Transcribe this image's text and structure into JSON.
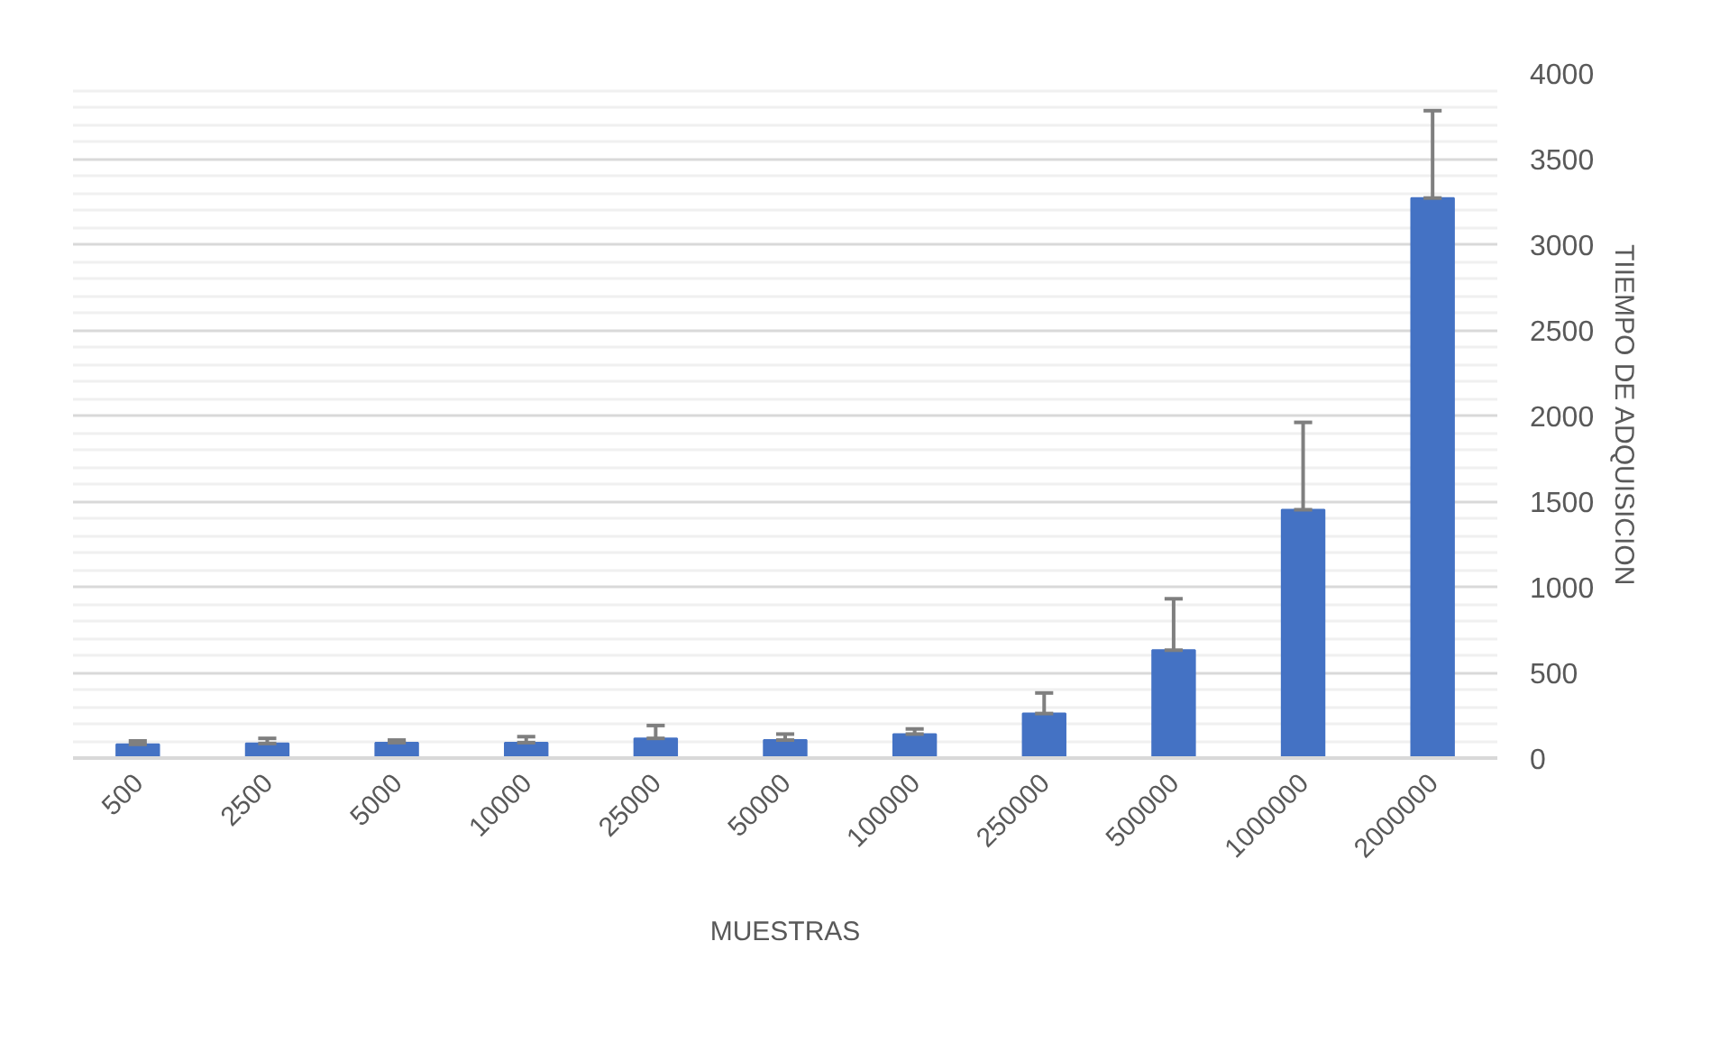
{
  "chart_data": {
    "type": "bar",
    "xlabel": "MUESTRAS",
    "ylabel": "TIIEMPO DE ADQUISICION",
    "categories": [
      "500",
      "2500",
      "5000",
      "10000",
      "25000",
      "50000",
      "100000",
      "250000",
      "500000",
      "1000000",
      "2000000"
    ],
    "values": [
      80,
      85,
      90,
      90,
      115,
      105,
      140,
      260,
      630,
      1450,
      3270
    ],
    "errors": [
      [
        80,
        100
      ],
      [
        85,
        115
      ],
      [
        90,
        105
      ],
      [
        90,
        125
      ],
      [
        115,
        190
      ],
      [
        105,
        140
      ],
      [
        140,
        170
      ],
      [
        260,
        380
      ],
      [
        630,
        930
      ],
      [
        1450,
        1960
      ],
      [
        3270,
        3780
      ]
    ],
    "color": "#4472c4",
    "ylim": [
      0,
      4000
    ],
    "yticks": [
      0,
      {
        "value": 100,
        "label": null
      },
      {
        "value": 200,
        "label": null
      },
      {
        "value": 300,
        "label": null
      },
      {
        "value": 400,
        "label": null
      },
      500,
      {
        "value": 600,
        "label": null
      },
      {
        "value": 700,
        "label": null
      },
      {
        "value": 800,
        "label": null
      },
      {
        "value": 900,
        "label": null
      },
      1000,
      {
        "value": 1100,
        "label": null
      },
      {
        "value": 1200,
        "label": null
      },
      {
        "value": 1300,
        "label": null
      },
      {
        "value": 1400,
        "label": null
      },
      1500,
      {
        "value": 1600,
        "label": null
      },
      {
        "value": 1700,
        "label": null
      },
      {
        "value": 1800,
        "label": null
      },
      {
        "value": 1900,
        "label": null
      },
      2000,
      {
        "value": 2100,
        "label": null
      },
      {
        "value": 2200,
        "label": null
      },
      {
        "value": 2300,
        "label": null
      },
      {
        "value": 2400,
        "label": null
      },
      2500,
      {
        "value": 2600,
        "label": null
      },
      {
        "value": 2700,
        "label": null
      },
      {
        "value": 2800,
        "label": null
      },
      {
        "value": 2900,
        "label": null
      },
      3000,
      {
        "value": 3100,
        "label": null
      },
      {
        "value": 3200,
        "label": null
      },
      {
        "value": 3300,
        "label": null
      },
      {
        "value": 3400,
        "label": null
      },
      3500,
      {
        "value": 3600,
        "label": null
      },
      {
        "value": 3700,
        "label": null
      },
      {
        "value": 3800,
        "label": null
      },
      {
        "value": 3900,
        "label": null
      },
      4000
    ],
    "grid": "y"
  }
}
